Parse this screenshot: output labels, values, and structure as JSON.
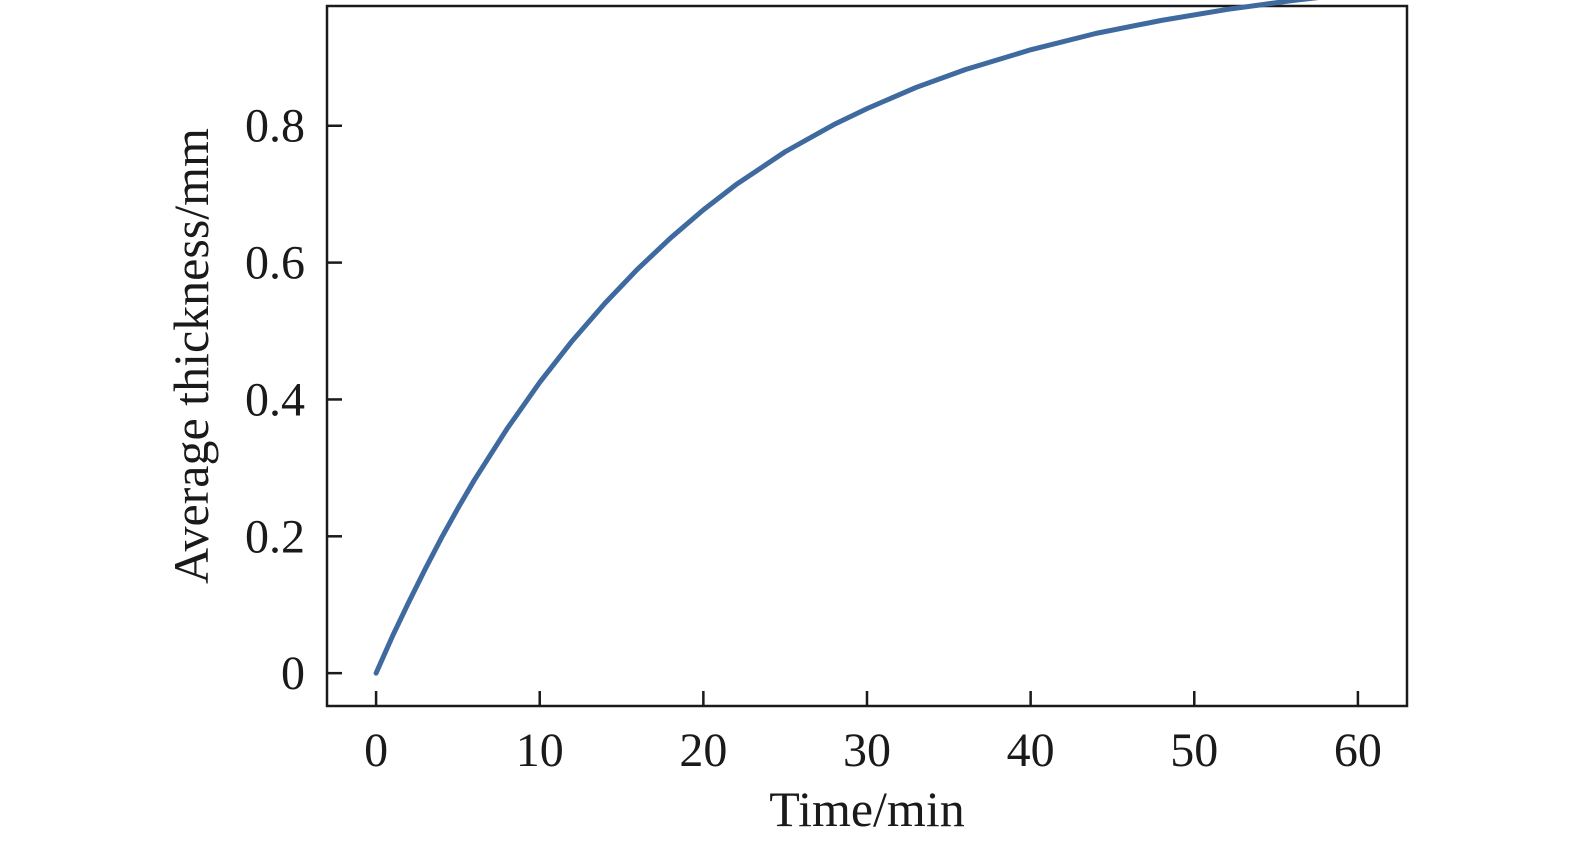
{
  "chart_data": {
    "type": "line",
    "title": "",
    "xlabel": "Time/min",
    "ylabel": "Average thickness/mm",
    "xlim": [
      -3,
      63
    ],
    "ylim": [
      -0.048,
      0.975
    ],
    "x_ticks": [
      0,
      10,
      20,
      30,
      40,
      50,
      60
    ],
    "x_tick_labels": [
      "0",
      "10",
      "20",
      "30",
      "40",
      "50",
      "60"
    ],
    "y_ticks": [
      0,
      0.2,
      0.4,
      0.6,
      0.8
    ],
    "y_tick_labels": [
      "0",
      "0.2",
      "0.4",
      "0.6",
      "0.8"
    ],
    "grid": false,
    "legend": "none",
    "series": [
      {
        "color": "#3f6aa0",
        "x": [
          0,
          1,
          2,
          3,
          4,
          5,
          6,
          8,
          10,
          12,
          14,
          16,
          18,
          20,
          22,
          25,
          28,
          30,
          33,
          36,
          40,
          44,
          48,
          52,
          56,
          60
        ],
        "y": [
          0,
          0.054,
          0.104,
          0.152,
          0.198,
          0.241,
          0.282,
          0.357,
          0.425,
          0.486,
          0.541,
          0.591,
          0.636,
          0.677,
          0.714,
          0.762,
          0.802,
          0.825,
          0.856,
          0.882,
          0.911,
          0.935,
          0.954,
          0.97,
          0.983,
          0.994
        ]
      }
    ]
  }
}
